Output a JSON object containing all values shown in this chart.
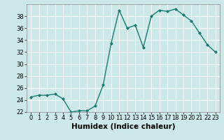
{
  "x": [
    0,
    1,
    2,
    3,
    4,
    5,
    6,
    7,
    8,
    9,
    10,
    11,
    12,
    13,
    14,
    15,
    16,
    17,
    18,
    19,
    20,
    21,
    22,
    23
  ],
  "y": [
    24.5,
    24.8,
    24.8,
    25.0,
    24.2,
    22.0,
    22.2,
    22.2,
    23.0,
    26.5,
    33.5,
    39.0,
    36.0,
    36.5,
    32.8,
    38.0,
    39.0,
    38.8,
    39.2,
    38.2,
    37.2,
    35.2,
    33.2,
    32.0
  ],
  "line_color": "#1a7a6e",
  "marker": "D",
  "marker_size": 2.0,
  "linewidth": 1.0,
  "xlabel": "Humidex (Indice chaleur)",
  "xlim": [
    -0.5,
    23.5
  ],
  "ylim": [
    22,
    40
  ],
  "yticks": [
    22,
    24,
    26,
    28,
    30,
    32,
    34,
    36,
    38
  ],
  "xticks": [
    0,
    1,
    2,
    3,
    4,
    5,
    6,
    7,
    8,
    9,
    10,
    11,
    12,
    13,
    14,
    15,
    16,
    17,
    18,
    19,
    20,
    21,
    22,
    23
  ],
  "bg_color": "#cce8e8",
  "grid_color": "#ffffff",
  "tick_fontsize": 6,
  "xlabel_fontsize": 7.5,
  "spine_color": "#888888"
}
